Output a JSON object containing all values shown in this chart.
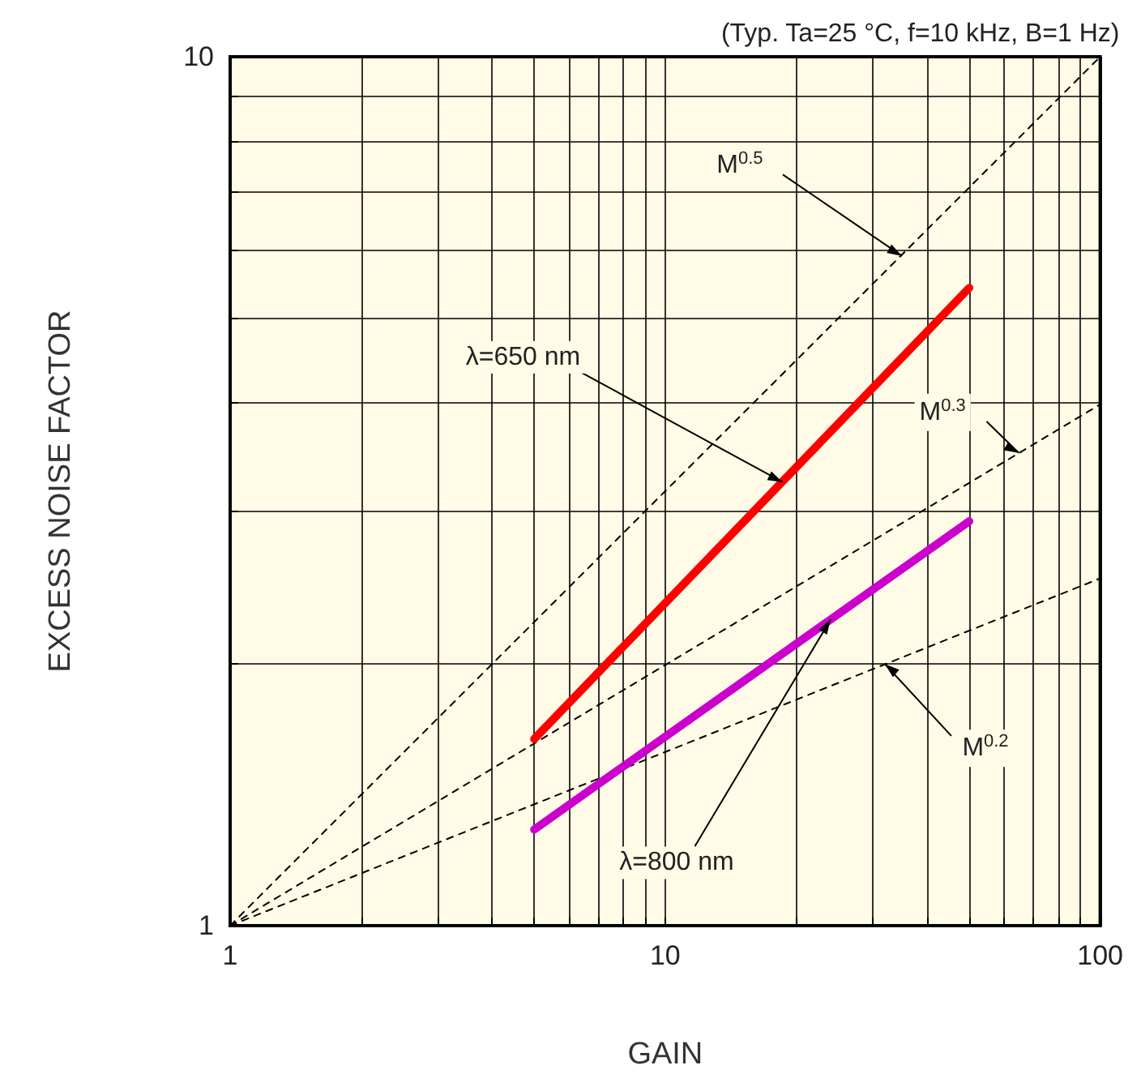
{
  "chart_data": {
    "type": "line",
    "title": "(Typ. Ta=25 °C, f=10 kHz, B=1 Hz)",
    "xlabel": "GAIN",
    "ylabel": "EXCESS NOISE FACTOR",
    "log": "xy",
    "grid": true,
    "legend": false,
    "marker": "none",
    "xlim": [
      1,
      100
    ],
    "ylim": [
      1,
      10
    ],
    "xticks": [
      1,
      {
        "value": 2,
        "label": null
      },
      {
        "value": 3,
        "label": null
      },
      {
        "value": 4,
        "label": null
      },
      {
        "value": 5,
        "label": null
      },
      {
        "value": 6,
        "label": null
      },
      {
        "value": 7,
        "label": null
      },
      {
        "value": 8,
        "label": null
      },
      {
        "value": 9,
        "label": null
      },
      10,
      {
        "value": 20,
        "label": null
      },
      {
        "value": 30,
        "label": null
      },
      {
        "value": 40,
        "label": null
      },
      {
        "value": 50,
        "label": null
      },
      {
        "value": 60,
        "label": null
      },
      {
        "value": 70,
        "label": null
      },
      {
        "value": 80,
        "label": null
      },
      {
        "value": 90,
        "label": null
      },
      100
    ],
    "yticks": [
      1,
      {
        "value": 2,
        "label": null
      },
      {
        "value": 3,
        "label": null
      },
      {
        "value": 4,
        "label": null
      },
      {
        "value": 5,
        "label": null
      },
      {
        "value": 6,
        "label": null
      },
      {
        "value": 7,
        "label": null
      },
      {
        "value": 8,
        "label": null
      },
      {
        "value": 9,
        "label": null
      },
      10
    ],
    "series": [
      {
        "color": "#000000",
        "line_style": "dashed",
        "x": [
          1,
          100
        ],
        "values": [
          1,
          10
        ]
      },
      {
        "color": "#000000",
        "line_style": "dashed",
        "x": [
          1,
          100
        ],
        "values": [
          1,
          3.98
        ]
      },
      {
        "color": "#000000",
        "line_style": "dashed",
        "x": [
          1,
          100
        ],
        "values": [
          1,
          2.51
        ]
      },
      {
        "color": "#ff0000",
        "line_style": "solid",
        "x": [
          5,
          50
        ],
        "values": [
          1.64,
          5.42
        ]
      },
      {
        "color": "#cc00cc",
        "line_style": "solid",
        "x": [
          5,
          50
        ],
        "values": [
          1.29,
          2.92
        ]
      }
    ],
    "annotations": [
      {
        "text": "M$^{0.5}$",
        "x": 35,
        "y": 5.9
      },
      {
        "text": "λ=650 nm",
        "x": 18.6,
        "y": 3.24
      },
      {
        "text": "M$^{0.3}$",
        "x": 65,
        "y": 3.5
      },
      {
        "text": "λ=800 nm",
        "x": 24,
        "y": 2.25
      },
      {
        "text": "M$^{0.2}$",
        "x": 32,
        "y": 2.0
      }
    ]
  }
}
